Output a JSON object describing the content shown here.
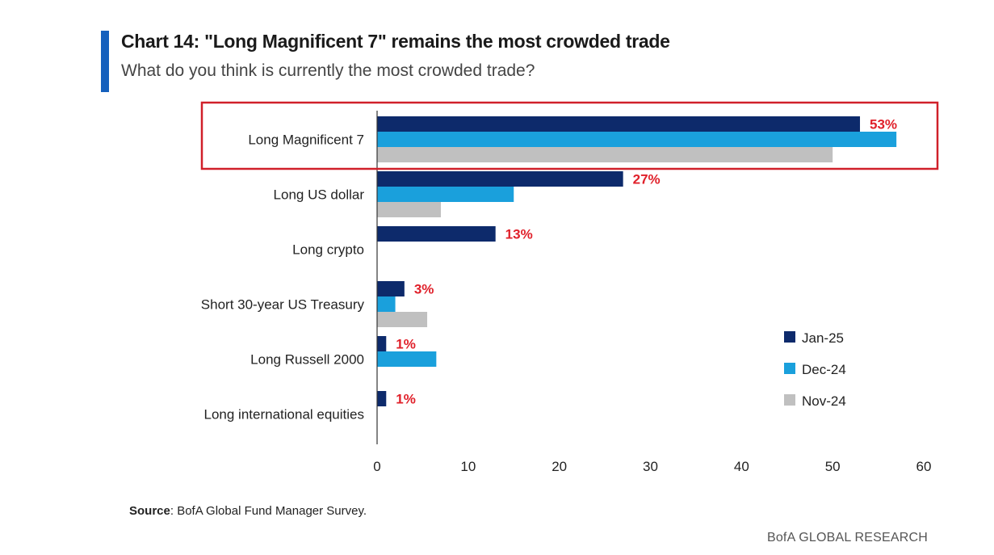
{
  "header": {
    "title": "Chart 14: \"Long Magnificent 7\" remains the most crowded trade",
    "subtitle": "What do you think is currently the most crowded trade?"
  },
  "footer": {
    "source_label": "Source",
    "source_text": ": BofA Global Fund Manager Survey.",
    "brand": "BofA GLOBAL RESEARCH"
  },
  "colors": {
    "accent": "#1560bd",
    "highlight_box": "#d0202a",
    "value_label": "#e0202a"
  },
  "chart_data": {
    "type": "bar",
    "orientation": "horizontal",
    "title": "Chart 14: \"Long Magnificent 7\" remains the most crowded trade",
    "subtitle": "What do you think is currently the most crowded trade?",
    "xlabel": "",
    "ylabel": "",
    "xlim": [
      0,
      60
    ],
    "xticks": [
      0,
      10,
      20,
      30,
      40,
      50,
      60
    ],
    "grid": false,
    "legend_position": "lower-right",
    "categories": [
      "Long Magnificent 7",
      "Long US dollar",
      "Long crypto",
      "Short 30-year US Treasury",
      "Long Russell 2000",
      "Long international equities"
    ],
    "series": [
      {
        "name": "Jan-25",
        "color": "#0d2a6b",
        "values": [
          53,
          27,
          13,
          3,
          1,
          1
        ]
      },
      {
        "name": "Dec-24",
        "color": "#1aa0dc",
        "values": [
          57,
          15,
          null,
          2,
          6.5,
          null
        ]
      },
      {
        "name": "Nov-24",
        "color": "#c0c0c0",
        "values": [
          50,
          7,
          null,
          5.5,
          null,
          null
        ]
      }
    ],
    "data_labels": [
      "53%",
      "27%",
      "13%",
      "3%",
      "1%",
      "1%"
    ],
    "highlighted_category": "Long Magnificent 7"
  }
}
